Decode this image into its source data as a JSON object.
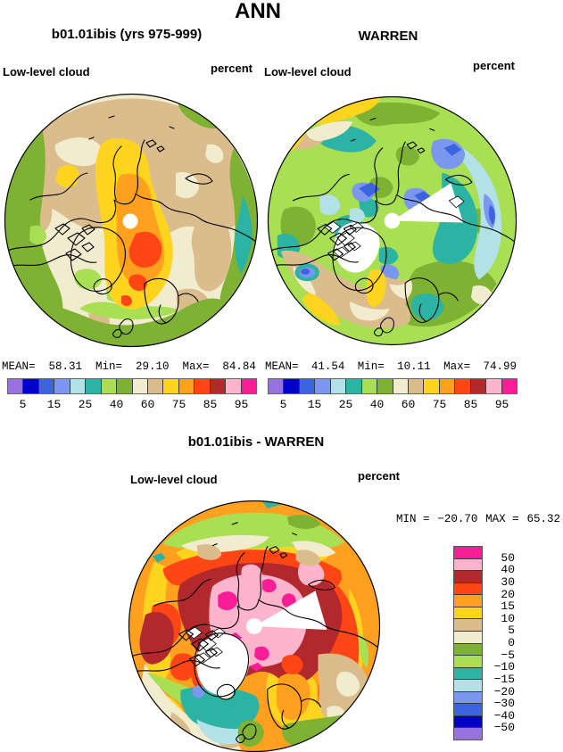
{
  "page_title": "ANN",
  "panels": [
    {
      "title": "b01.01ibis (yrs 975-999)",
      "field": "Low-level cloud",
      "units": "percent",
      "stats": {
        "mean_label": "MEAN=",
        "mean": "58.31",
        "min_label": "Min=",
        "min": "29.10",
        "max_label": "Max=",
        "max": "84.84"
      }
    },
    {
      "title": "WARREN",
      "field": "Low-level cloud",
      "units": "percent",
      "stats": {
        "mean_label": "MEAN=",
        "mean": "41.54",
        "min_label": "Min=",
        "min": "10.11",
        "max_label": "Max=",
        "max": "74.99"
      }
    }
  ],
  "diff": {
    "title": "b01.01ibis - WARREN",
    "field": "Low-level cloud",
    "units": "percent",
    "min_label": "MIN =",
    "min": "−20.70",
    "max_label": "MAX =",
    "max": "65.32",
    "colorbar_tick_labels": [
      "50",
      "40",
      "30",
      "20",
      "15",
      "10",
      "5",
      "0",
      "−5",
      "−10",
      "−15",
      "−20",
      "−30",
      "−40",
      "−50"
    ]
  },
  "colorbar": {
    "tick_labels": [
      "5",
      "15",
      "25",
      "40",
      "60",
      "75",
      "85",
      "95"
    ],
    "tick_positions": [
      1,
      3,
      5,
      7,
      9,
      11,
      13,
      15
    ]
  },
  "palette": {
    "colors": [
      "#9673DC",
      "#0000CD",
      "#3C64E1",
      "#7B97F0",
      "#B3E1E8",
      "#2BB3A3",
      "#A9DF52",
      "#7FB232",
      "#F2ECCF",
      "#DBBD8D",
      "#FFD41F",
      "#FFA01F",
      "#FF4614",
      "#B3282D",
      "#FFB4CD",
      "#FA1E96"
    ]
  },
  "chart_data": [
    {
      "type": "heatmap",
      "projection": "north-polar-stereographic-map",
      "season": "ANN",
      "title": "b01.01ibis (yrs 975-999)",
      "variable": "Low-level cloud",
      "units": "percent",
      "stats": {
        "mean": 58.31,
        "min": 29.1,
        "max": 84.84
      },
      "colorbar_labels": [
        5,
        15,
        25,
        40,
        60,
        75,
        85,
        95
      ],
      "n_colors": 16,
      "legend_position": "bottom"
    },
    {
      "type": "heatmap",
      "projection": "north-polar-stereographic-map",
      "season": "ANN",
      "title": "WARREN",
      "variable": "Low-level cloud",
      "units": "percent",
      "stats": {
        "mean": 41.54,
        "min": 10.11,
        "max": 74.99
      },
      "colorbar_labels": [
        5,
        15,
        25,
        40,
        60,
        75,
        85,
        95
      ],
      "n_colors": 16,
      "legend_position": "bottom"
    },
    {
      "type": "heatmap",
      "projection": "north-polar-stereographic-map",
      "season": "ANN",
      "title": "b01.01ibis - WARREN",
      "variable": "Low-level cloud",
      "units": "percent",
      "stats": {
        "min": -20.7,
        "max": 65.32
      },
      "colorbar_labels": [
        50,
        40,
        30,
        20,
        15,
        10,
        5,
        0,
        -5,
        -10,
        -15,
        -20,
        -30,
        -40,
        -50
      ],
      "n_colors": 16,
      "legend_position": "right"
    }
  ]
}
